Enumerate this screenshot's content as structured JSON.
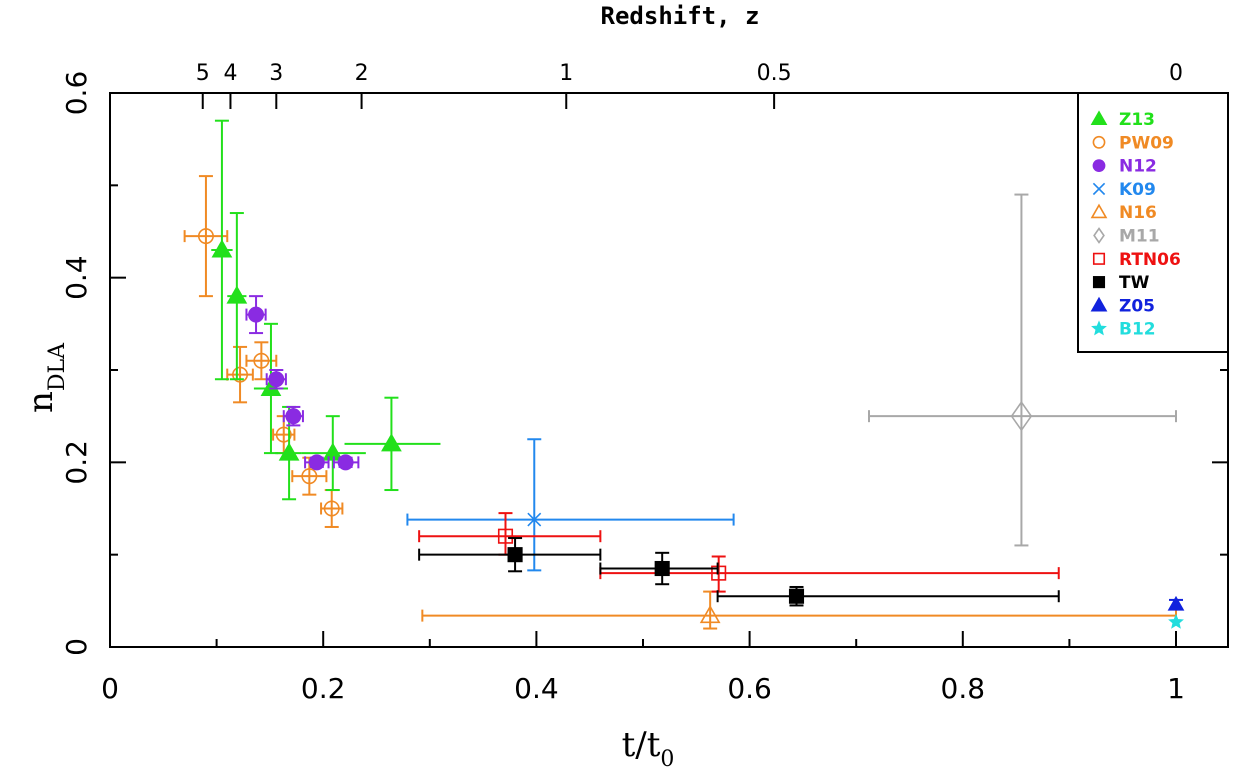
{
  "chart_data": {
    "type": "scatter",
    "xlabel_base": "t/t",
    "xlabel_sub": "0",
    "ylabel_base": "n",
    "ylabel_sub": "DLA",
    "top_title": "Redshift, z",
    "xlim": [
      0,
      1.05
    ],
    "ylim": [
      0,
      0.6
    ],
    "x_ticks": [
      "0",
      "0.2",
      "0.4",
      "0.6",
      "0.8",
      "1"
    ],
    "x_tick_values": [
      0,
      0.2,
      0.4,
      0.6,
      0.8,
      1.0
    ],
    "y_ticks": [
      "0",
      "0.2",
      "0.4",
      "0.6"
    ],
    "y_tick_values": [
      0,
      0.2,
      0.4,
      0.6
    ],
    "top_ticks": [
      {
        "label": "5",
        "x": 0.087
      },
      {
        "label": "4",
        "x": 0.113
      },
      {
        "label": "3",
        "x": 0.156
      },
      {
        "label": "2",
        "x": 0.236
      },
      {
        "label": "1",
        "x": 0.428
      },
      {
        "label": "0.5",
        "x": 0.623
      },
      {
        "label": "0",
        "x": 1.0
      }
    ],
    "series": [
      {
        "name": "Z13",
        "color": "#22e01b",
        "marker": "triangle",
        "filled": true,
        "cap": false,
        "points": [
          {
            "x": 0.105,
            "y": 0.43,
            "xlo": 0.095,
            "xhi": 0.115,
            "ylo": 0.29,
            "yhi": 0.57
          },
          {
            "x": 0.119,
            "y": 0.38,
            "xlo": 0.11,
            "xhi": 0.128,
            "ylo": 0.29,
            "yhi": 0.47
          },
          {
            "x": 0.151,
            "y": 0.28,
            "xlo": 0.135,
            "xhi": 0.167,
            "ylo": 0.21,
            "yhi": 0.35
          },
          {
            "x": 0.168,
            "y": 0.21,
            "xlo": 0.155,
            "xhi": 0.18,
            "ylo": 0.16,
            "yhi": 0.26
          },
          {
            "x": 0.209,
            "y": 0.21,
            "xlo": 0.18,
            "xhi": 0.24,
            "ylo": 0.17,
            "yhi": 0.25
          },
          {
            "x": 0.264,
            "y": 0.22,
            "xlo": 0.22,
            "xhi": 0.31,
            "ylo": 0.17,
            "yhi": 0.27
          }
        ]
      },
      {
        "name": "PW09",
        "color": "#f08a24",
        "marker": "circle",
        "filled": false,
        "cap": true,
        "points": [
          {
            "x": 0.09,
            "y": 0.445,
            "xlo": 0.07,
            "xhi": 0.11,
            "ylo": 0.38,
            "yhi": 0.51
          },
          {
            "x": 0.122,
            "y": 0.295,
            "xlo": 0.11,
            "xhi": 0.134,
            "ylo": 0.265,
            "yhi": 0.325
          },
          {
            "x": 0.142,
            "y": 0.31,
            "xlo": 0.128,
            "xhi": 0.156,
            "ylo": 0.29,
            "yhi": 0.33
          },
          {
            "x": 0.163,
            "y": 0.23,
            "xlo": 0.153,
            "xhi": 0.173,
            "ylo": 0.21,
            "yhi": 0.25
          },
          {
            "x": 0.187,
            "y": 0.185,
            "xlo": 0.171,
            "xhi": 0.203,
            "ylo": 0.165,
            "yhi": 0.205
          },
          {
            "x": 0.208,
            "y": 0.15,
            "xlo": 0.198,
            "xhi": 0.218,
            "ylo": 0.13,
            "yhi": 0.17
          }
        ]
      },
      {
        "name": "N12",
        "color": "#8a2be2",
        "marker": "circle",
        "filled": true,
        "cap": true,
        "points": [
          {
            "x": 0.137,
            "y": 0.36,
            "xlo": 0.128,
            "xhi": 0.146,
            "ylo": 0.34,
            "yhi": 0.38
          },
          {
            "x": 0.156,
            "y": 0.29,
            "xlo": 0.147,
            "xhi": 0.165,
            "ylo": 0.28,
            "yhi": 0.3
          },
          {
            "x": 0.172,
            "y": 0.25,
            "xlo": 0.163,
            "xhi": 0.181,
            "ylo": 0.24,
            "yhi": 0.26
          },
          {
            "x": 0.194,
            "y": 0.2,
            "xlo": 0.183,
            "xhi": 0.205,
            "ylo": 0.195,
            "yhi": 0.205
          },
          {
            "x": 0.221,
            "y": 0.2,
            "xlo": 0.21,
            "xhi": 0.233,
            "ylo": 0.195,
            "yhi": 0.205
          }
        ]
      },
      {
        "name": "K09",
        "color": "#2288ee",
        "marker": "cross",
        "filled": false,
        "cap": true,
        "points": [
          {
            "x": 0.398,
            "y": 0.138,
            "xlo": 0.279,
            "xhi": 0.585,
            "ylo": 0.083,
            "yhi": 0.225
          }
        ]
      },
      {
        "name": "N16",
        "color": "#f08a24",
        "marker": "triangle",
        "filled": false,
        "cap": true,
        "points": [
          {
            "x": 0.563,
            "y": 0.034,
            "xlo": 0.293,
            "xhi": 1.0,
            "ylo": 0.02,
            "yhi": 0.06
          }
        ]
      },
      {
        "name": "M11",
        "color": "#a8a8a8",
        "marker": "diamond",
        "filled": false,
        "cap": true,
        "points": [
          {
            "x": 0.855,
            "y": 0.25,
            "xlo": 0.712,
            "xhi": 1.0,
            "ylo": 0.11,
            "yhi": 0.49
          }
        ]
      },
      {
        "name": "RTN06",
        "color": "#ee1111",
        "marker": "square",
        "filled": false,
        "cap": true,
        "points": [
          {
            "x": 0.371,
            "y": 0.12,
            "xlo": 0.29,
            "xhi": 0.46,
            "ylo": 0.1,
            "yhi": 0.145
          },
          {
            "x": 0.571,
            "y": 0.08,
            "xlo": 0.46,
            "xhi": 0.89,
            "ylo": 0.06,
            "yhi": 0.098
          }
        ]
      },
      {
        "name": "TW",
        "color": "#000000",
        "marker": "square",
        "filled": true,
        "cap": true,
        "points": [
          {
            "x": 0.38,
            "y": 0.1,
            "xlo": 0.29,
            "xhi": 0.46,
            "ylo": 0.082,
            "yhi": 0.118
          },
          {
            "x": 0.518,
            "y": 0.085,
            "xlo": 0.46,
            "xhi": 0.57,
            "ylo": 0.068,
            "yhi": 0.102
          },
          {
            "x": 0.644,
            "y": 0.055,
            "xlo": 0.57,
            "xhi": 0.89,
            "ylo": 0.045,
            "yhi": 0.065
          }
        ]
      },
      {
        "name": "Z05",
        "color": "#1122dd",
        "marker": "triangle",
        "filled": true,
        "cap": true,
        "points": [
          {
            "x": 1.0,
            "y": 0.046,
            "xlo": 1.0,
            "xhi": 1.0,
            "ylo": 0.041,
            "yhi": 0.051
          }
        ]
      },
      {
        "name": "B12",
        "color": "#22dddd",
        "marker": "star",
        "filled": true,
        "cap": false,
        "points": [
          {
            "x": 1.0,
            "y": 0.027,
            "xlo": 1.0,
            "xhi": 1.0,
            "ylo": 0.027,
            "yhi": 0.027
          }
        ]
      }
    ]
  }
}
